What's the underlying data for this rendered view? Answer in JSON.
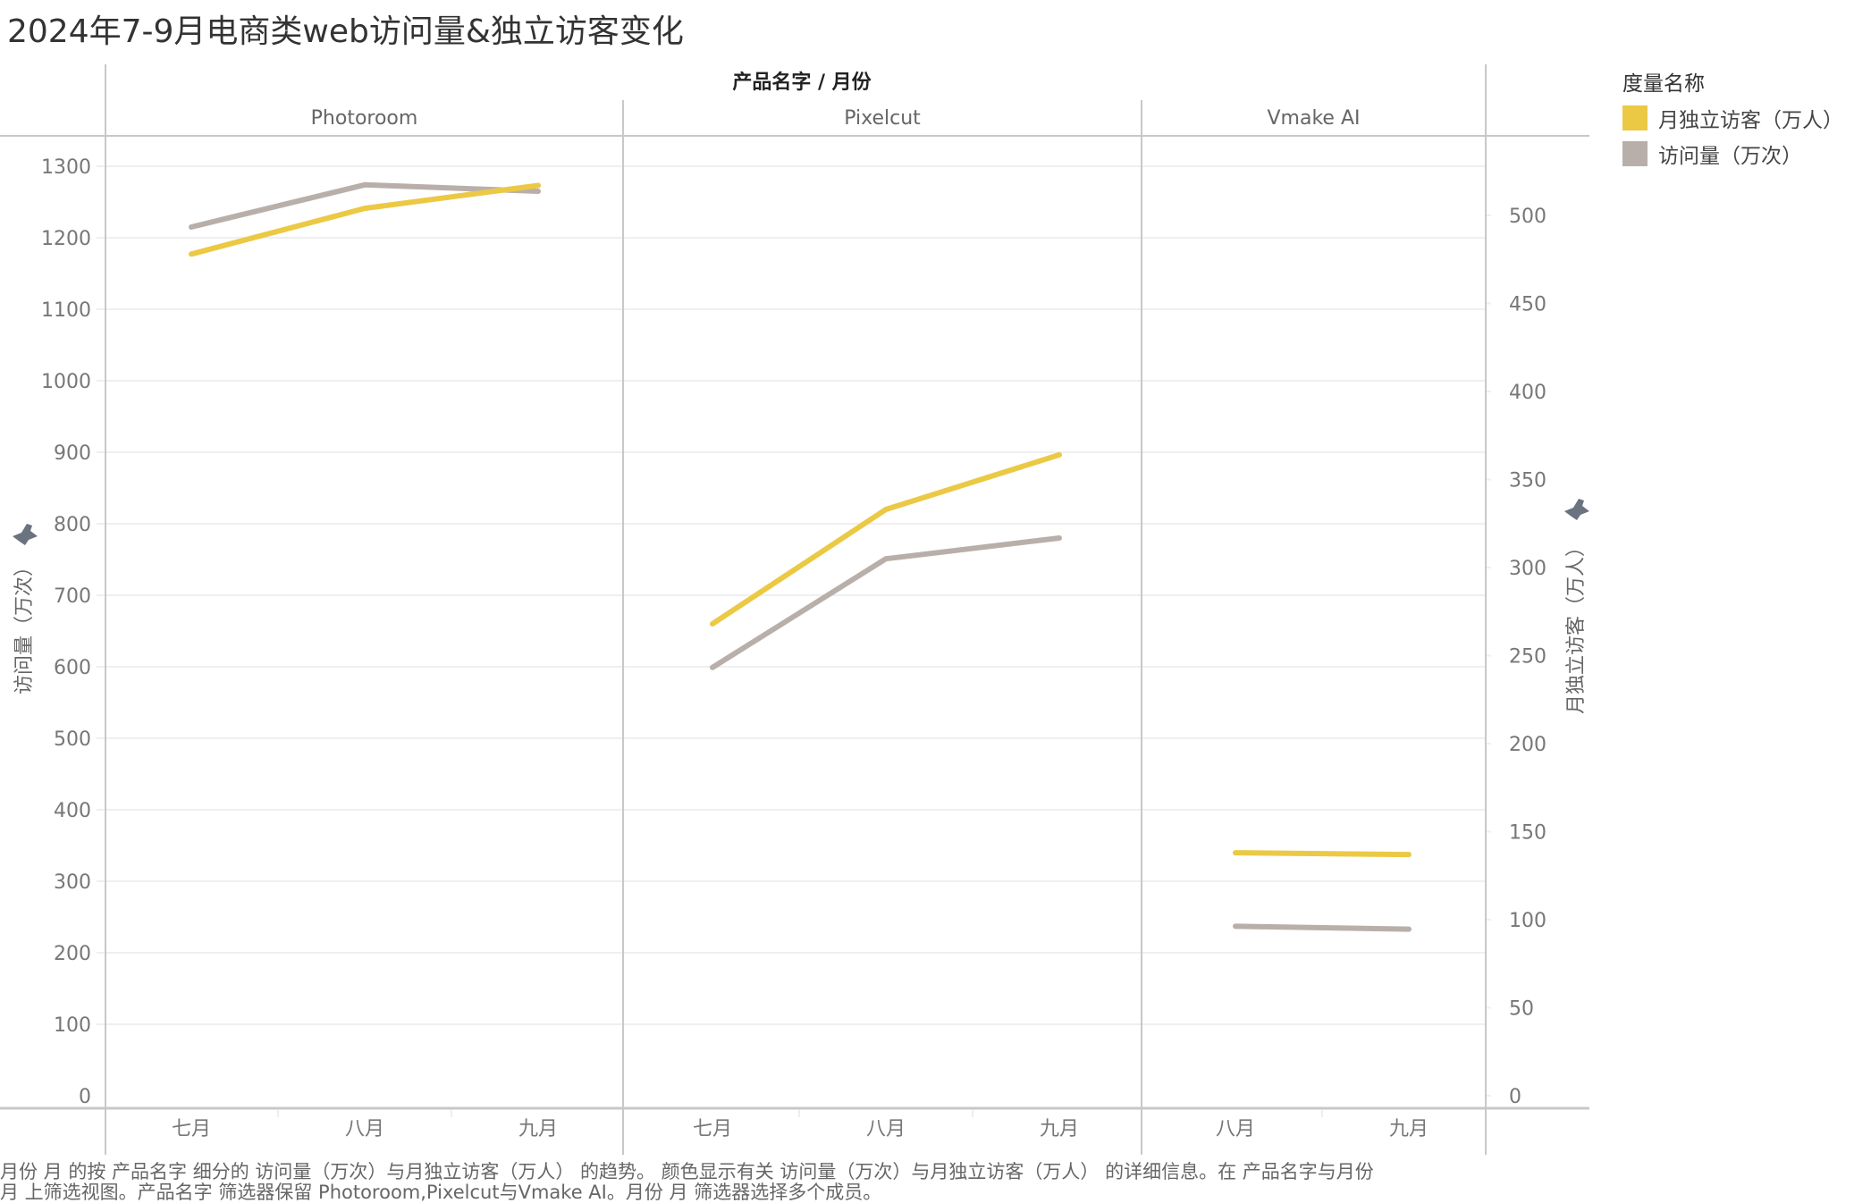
{
  "title": "2024年7-9月电商类web访问量&独立访客变化",
  "header": {
    "column_header": "产品名字 / 月份",
    "panels": [
      "Photoroom",
      "Pixelcut",
      "Vmake AI"
    ]
  },
  "axes": {
    "left_title": "访问量（万次）",
    "right_title": "月独立访客（万人）",
    "left_ticks": [
      "0",
      "100",
      "200",
      "300",
      "400",
      "500",
      "600",
      "700",
      "800",
      "900",
      "1000",
      "1100",
      "1200",
      "1300"
    ],
    "right_ticks": [
      "0",
      "50",
      "100",
      "150",
      "200",
      "250",
      "300",
      "350",
      "400",
      "450",
      "500"
    ]
  },
  "legend": {
    "title": "度量名称",
    "items": [
      {
        "label": "月独立访客（万人）",
        "color": "#EBC944"
      },
      {
        "label": "访问量（万次）",
        "color": "#B9AFAA"
      }
    ]
  },
  "caption": {
    "line1": "月份 月 的按 产品名字 细分的 访问量（万次）与月独立访客（万人） 的趋势。 颜色显示有关 访问量（万次）与月独立访客（万人） 的详细信息。在 产品名字与月份",
    "line2": "月 上筛选视图。产品名字 筛选器保留 Photoroom,Pixelcut与Vmake AI。月份 月 筛选器选择多个成员。"
  },
  "chart_data": {
    "type": "line",
    "title": "2024年7-9月电商类web访问量&独立访客变化",
    "xlabel": "产品名字 / 月份",
    "ylabel": "访问量（万次）",
    "y2label": "月独立访客（万人）",
    "ylim": [
      0,
      1300
    ],
    "y2lim": [
      0,
      528
    ],
    "grid": true,
    "legend_position": "right",
    "panels": [
      {
        "name": "Photoroom",
        "categories": [
          "七月",
          "八月",
          "九月"
        ],
        "series": [
          {
            "name": "访问量（万次）",
            "axis": "left",
            "values": [
              1215,
              1274,
              1265
            ]
          },
          {
            "name": "月独立访客（万人）",
            "axis": "right",
            "values": [
              478,
              504,
              517
            ]
          }
        ]
      },
      {
        "name": "Pixelcut",
        "categories": [
          "七月",
          "八月",
          "九月"
        ],
        "series": [
          {
            "name": "访问量（万次）",
            "axis": "left",
            "values": [
              599,
              751,
              780
            ]
          },
          {
            "name": "月独立访客（万人）",
            "axis": "right",
            "values": [
              268,
              333,
              364
            ]
          }
        ]
      },
      {
        "name": "Vmake AI",
        "categories": [
          "八月",
          "九月"
        ],
        "series": [
          {
            "name": "访问量（万次）",
            "axis": "left",
            "values": [
              237,
              233
            ]
          },
          {
            "name": "月独立访客（万人）",
            "axis": "right",
            "values": [
              138,
              137
            ]
          }
        ]
      }
    ]
  }
}
